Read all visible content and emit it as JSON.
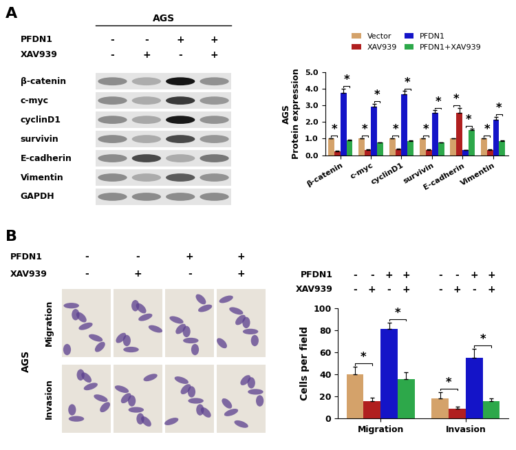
{
  "panel_labels": [
    "A",
    "B"
  ],
  "blot": {
    "cell_line": "AGS",
    "conditions": [
      {
        "name": "PFDN1",
        "signs": [
          "-",
          "-",
          "+",
          "+"
        ]
      },
      {
        "name": "XAV939",
        "signs": [
          "-",
          "+",
          "-",
          "+"
        ]
      }
    ],
    "proteins": [
      "β-catenin",
      "c-myc",
      "cyclinD1",
      "survivin",
      "E-cadherin",
      "Vimentin",
      "GAPDH"
    ]
  },
  "micrographs": {
    "cell_line": "AGS",
    "conditions": [
      {
        "name": "PFDN1",
        "signs": [
          "-",
          "-",
          "+",
          "+"
        ]
      },
      {
        "name": "XAV939",
        "signs": [
          "-",
          "+",
          "-",
          "+"
        ]
      }
    ],
    "rows": [
      "Migration",
      "Invasion"
    ]
  },
  "chart_data": [
    {
      "type": "bar",
      "ylabel": "AGS\nProtein expression",
      "categories": [
        "β-catenin",
        "c-myc",
        "cyclinD1",
        "survivin",
        "E-cadherin",
        "Vimentin"
      ],
      "series": [
        {
          "name": "Vector",
          "color": "#D4A26A",
          "values": [
            1.0,
            1.0,
            1.0,
            1.0,
            1.0,
            1.0
          ],
          "errors": [
            0.03,
            0.03,
            0.03,
            0.03,
            0.03,
            0.03
          ]
        },
        {
          "name": "XAV939",
          "color": "#B01F1F",
          "values": [
            0.25,
            0.3,
            0.35,
            0.3,
            2.55,
            0.3
          ],
          "errors": [
            0.04,
            0.04,
            0.04,
            0.04,
            0.3,
            0.04
          ]
        },
        {
          "name": "PFDN1",
          "color": "#1414C8",
          "values": [
            3.75,
            2.9,
            3.65,
            2.55,
            0.3,
            2.15
          ],
          "errors": [
            0.25,
            0.2,
            0.2,
            0.15,
            0.03,
            0.15
          ]
        },
        {
          "name": "PFDN1+XAV939",
          "color": "#2DA84A",
          "values": [
            0.9,
            0.75,
            0.85,
            0.75,
            1.5,
            0.85
          ],
          "errors": [
            0.04,
            0.04,
            0.04,
            0.04,
            0.1,
            0.04
          ]
        }
      ],
      "annotations": [
        {
          "text": "*",
          "between": [
            "Vector",
            "XAV939"
          ]
        },
        {
          "text": "*",
          "between": [
            "PFDN1",
            "PFDN1+XAV939"
          ]
        }
      ],
      "ylim": [
        0,
        5
      ],
      "yticks": [
        {
          "value": 0,
          "label": "0.0"
        },
        {
          "value": 1,
          "label": "1.0"
        },
        {
          "value": 2,
          "label": "2.0"
        },
        {
          "value": 3,
          "label": "3.0"
        },
        {
          "value": 4,
          "label": "4.0"
        },
        {
          "value": 5,
          "label": "5.0"
        }
      ],
      "legend": "upper center"
    },
    {
      "type": "bar",
      "ylabel": "Cells per field",
      "categories": [
        "Migration",
        "Invasion"
      ],
      "conditions": [
        {
          "name": "PFDN1",
          "signs": [
            "-",
            "-",
            "+",
            "+"
          ]
        },
        {
          "name": "XAV939",
          "signs": [
            "-",
            "+",
            "-",
            "+"
          ]
        }
      ],
      "series": [
        {
          "name": "Vector",
          "color": "#D4A26A",
          "values": [
            40,
            18
          ],
          "errors": [
            7,
            6
          ]
        },
        {
          "name": "XAV939",
          "color": "#B01F1F",
          "values": [
            16,
            9
          ],
          "errors": [
            3,
            1.5
          ]
        },
        {
          "name": "PFDN1",
          "color": "#1414C8",
          "values": [
            81,
            55
          ],
          "errors": [
            6,
            8
          ]
        },
        {
          "name": "PFDN1+XAV939",
          "color": "#2DA84A",
          "values": [
            36,
            16
          ],
          "errors": [
            6,
            2
          ]
        }
      ],
      "annotations": [
        {
          "text": "*",
          "between": [
            "Vector",
            "XAV939"
          ]
        },
        {
          "text": "*",
          "between": [
            "PFDN1",
            "PFDN1+XAV939"
          ]
        }
      ],
      "ylim": [
        0,
        100
      ],
      "yticks": [
        0,
        20,
        40,
        60,
        80,
        100
      ]
    }
  ]
}
